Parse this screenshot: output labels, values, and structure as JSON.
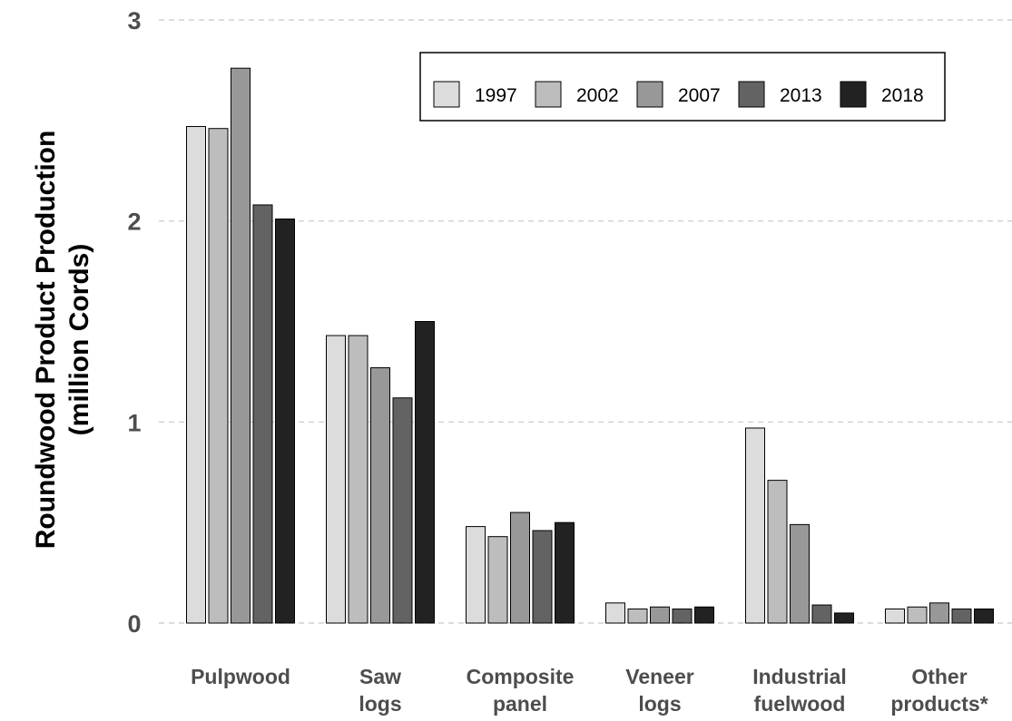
{
  "chart_data": {
    "type": "bar",
    "title": "",
    "xlabel": "",
    "ylabel_lines": [
      "Roundwood Product Production",
      "(million Cords)"
    ],
    "ylim": [
      0,
      3
    ],
    "yticks": [
      0,
      1,
      2,
      3
    ],
    "grid": "horizontal dashed",
    "legend_position": "top-right",
    "categories": [
      [
        "Pulpwood"
      ],
      [
        "Saw",
        "logs"
      ],
      [
        "Composite",
        "panel"
      ],
      [
        "Veneer",
        "logs"
      ],
      [
        "Industrial",
        "fuelwood"
      ],
      [
        "Other",
        "products*"
      ]
    ],
    "series": [
      {
        "name": "1997",
        "color": "#dcdcdc",
        "values": [
          2.47,
          1.43,
          0.48,
          0.1,
          0.97,
          0.07
        ]
      },
      {
        "name": "2002",
        "color": "#bdbdbd",
        "values": [
          2.46,
          1.43,
          0.43,
          0.07,
          0.71,
          0.08
        ]
      },
      {
        "name": "2007",
        "color": "#989898",
        "values": [
          2.76,
          1.27,
          0.55,
          0.08,
          0.49,
          0.1
        ]
      },
      {
        "name": "2013",
        "color": "#636363",
        "values": [
          2.08,
          1.12,
          0.46,
          0.07,
          0.09,
          0.07
        ]
      },
      {
        "name": "2018",
        "color": "#222222",
        "values": [
          2.01,
          1.5,
          0.5,
          0.08,
          0.05,
          0.07
        ]
      }
    ]
  }
}
